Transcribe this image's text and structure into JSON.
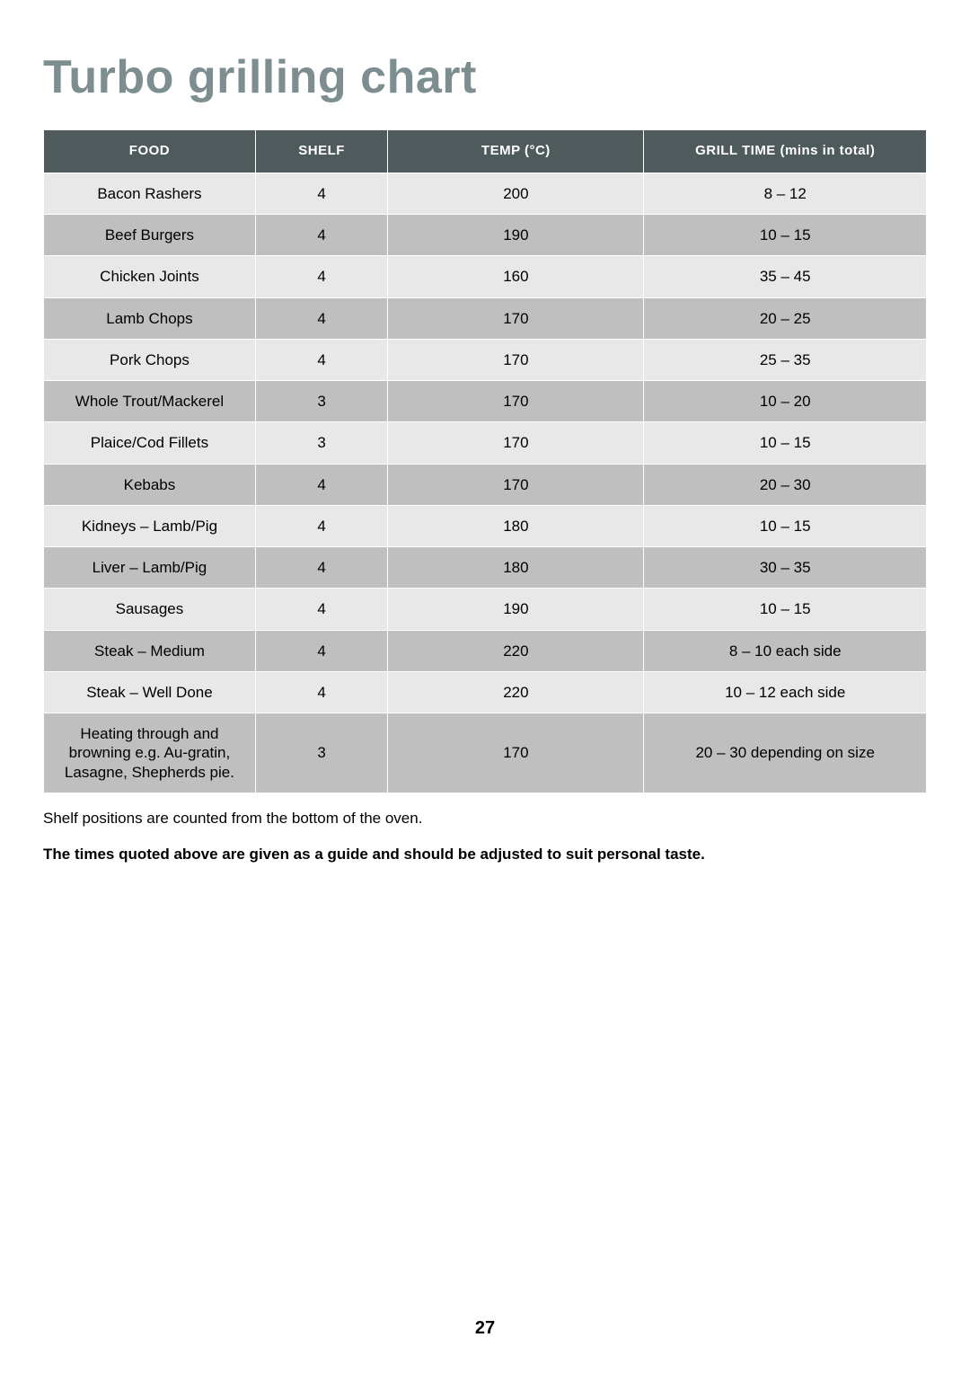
{
  "title": "Turbo grilling chart",
  "title_color": "#7d8e90",
  "page_number": "27",
  "notes": {
    "line1": "Shelf positions are counted from the bottom of the oven.",
    "line2": "The times quoted above are given as a guide and should be adjusted to suit personal taste."
  },
  "table": {
    "header_bg": "#4f5a5c",
    "header_fg": "#ffffff",
    "row_light_bg": "#e8e8e8",
    "row_dark_bg": "#bfbfbf",
    "border_color": "#ffffff",
    "cell_fontsize": 17,
    "header_fontsize": 15,
    "col_widths_pct": [
      24,
      15,
      29,
      32
    ],
    "columns": [
      "FOOD",
      "SHELF",
      "TEMP (°C)",
      "GRILL TIME (mins in total)"
    ],
    "rows": [
      [
        "Bacon Rashers",
        "4",
        "200",
        "8 – 12"
      ],
      [
        "Beef Burgers",
        "4",
        "190",
        "10 – 15"
      ],
      [
        "Chicken Joints",
        "4",
        "160",
        "35 – 45"
      ],
      [
        "Lamb Chops",
        "4",
        "170",
        "20 – 25"
      ],
      [
        "Pork Chops",
        "4",
        "170",
        "25 – 35"
      ],
      [
        "Whole Trout/Mackerel",
        "3",
        "170",
        "10 – 20"
      ],
      [
        "Plaice/Cod Fillets",
        "3",
        "170",
        "10 – 15"
      ],
      [
        "Kebabs",
        "4",
        "170",
        "20 – 30"
      ],
      [
        "Kidneys – Lamb/Pig",
        "4",
        "180",
        "10 – 15"
      ],
      [
        "Liver – Lamb/Pig",
        "4",
        "180",
        "30 – 35"
      ],
      [
        "Sausages",
        "4",
        "190",
        "10 – 15"
      ],
      [
        "Steak – Medium",
        "4",
        "220",
        "8 – 10 each side"
      ],
      [
        "Steak – Well Done",
        "4",
        "220",
        "10 – 12 each side"
      ],
      [
        "Heating through and browning e.g. Au-gratin, Lasagne, Shepherds pie.",
        "3",
        "170",
        "20 – 30 depending on size"
      ]
    ]
  }
}
